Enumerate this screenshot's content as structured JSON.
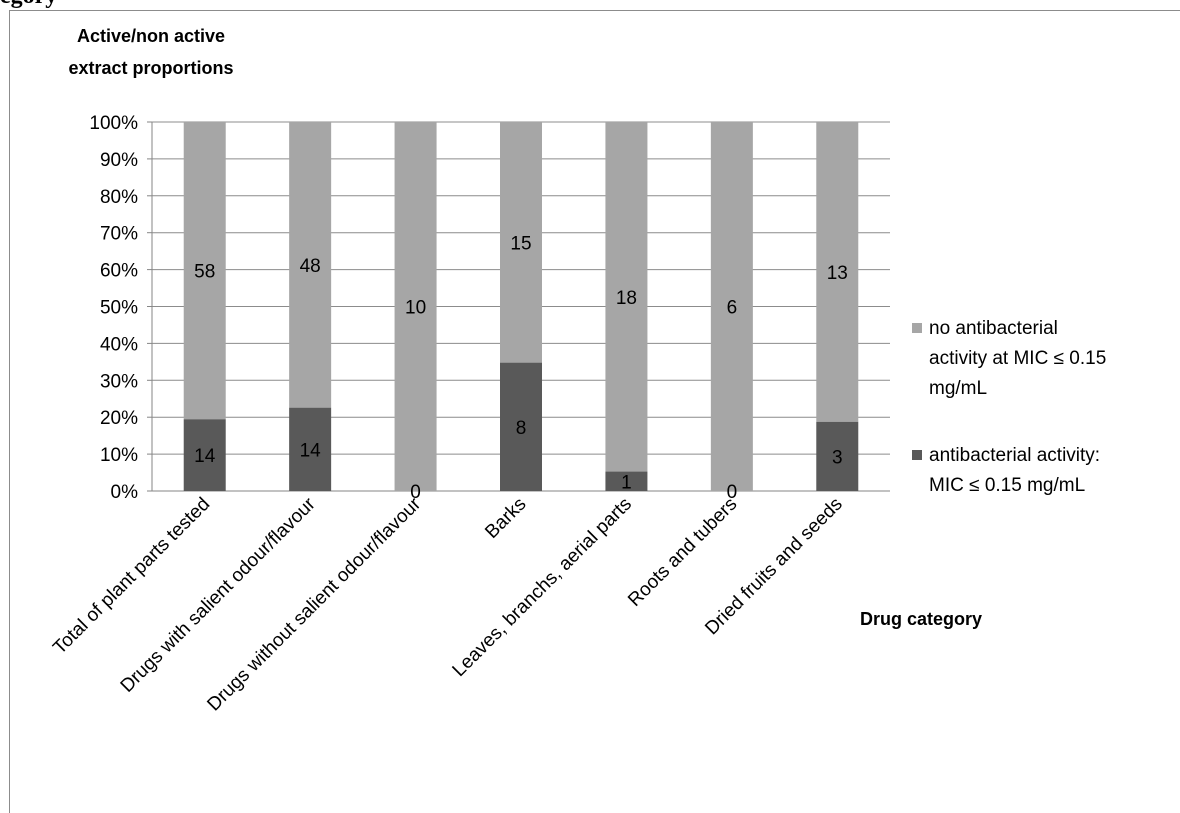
{
  "header": {
    "cut_text": "egory"
  },
  "chart_data": {
    "type": "bar",
    "stacked": true,
    "normalized": true,
    "ylabel": "Active/non active extract proportions",
    "xlabel": "Drug category",
    "ylim": [
      0,
      100
    ],
    "yticks": [
      "0%",
      "10%",
      "20%",
      "30%",
      "40%",
      "50%",
      "60%",
      "70%",
      "80%",
      "90%",
      "100%"
    ],
    "grid": true,
    "legend_position": "right",
    "categories": [
      "Total of plant parts tested",
      "Drugs with salient odour/flavour",
      "Drugs without salient odour/flavour",
      "Barks",
      "Leaves, branchs, aerial parts",
      "Roots and tubers",
      "Dried fruits and seeds"
    ],
    "series": [
      {
        "name": "antibacterial activity: MIC ≤ 0.15 mg/mL",
        "values": [
          14,
          14,
          0,
          8,
          1,
          0,
          3
        ],
        "color": "#595959"
      },
      {
        "name": "no antibacterial activity at MIC ≤ 0.15 mg/mL",
        "values": [
          58,
          48,
          10,
          15,
          18,
          6,
          13
        ],
        "color": "#a6a6a6"
      }
    ],
    "legend": [
      {
        "label_lines": [
          "no antibacterial",
          "activity at MIC ≤ 0.15",
          "mg/mL"
        ],
        "color": "#a6a6a6"
      },
      {
        "label_lines": [
          "antibacterial activity:",
          "MIC ≤ 0.15 mg/mL"
        ],
        "color": "#595959"
      }
    ]
  }
}
